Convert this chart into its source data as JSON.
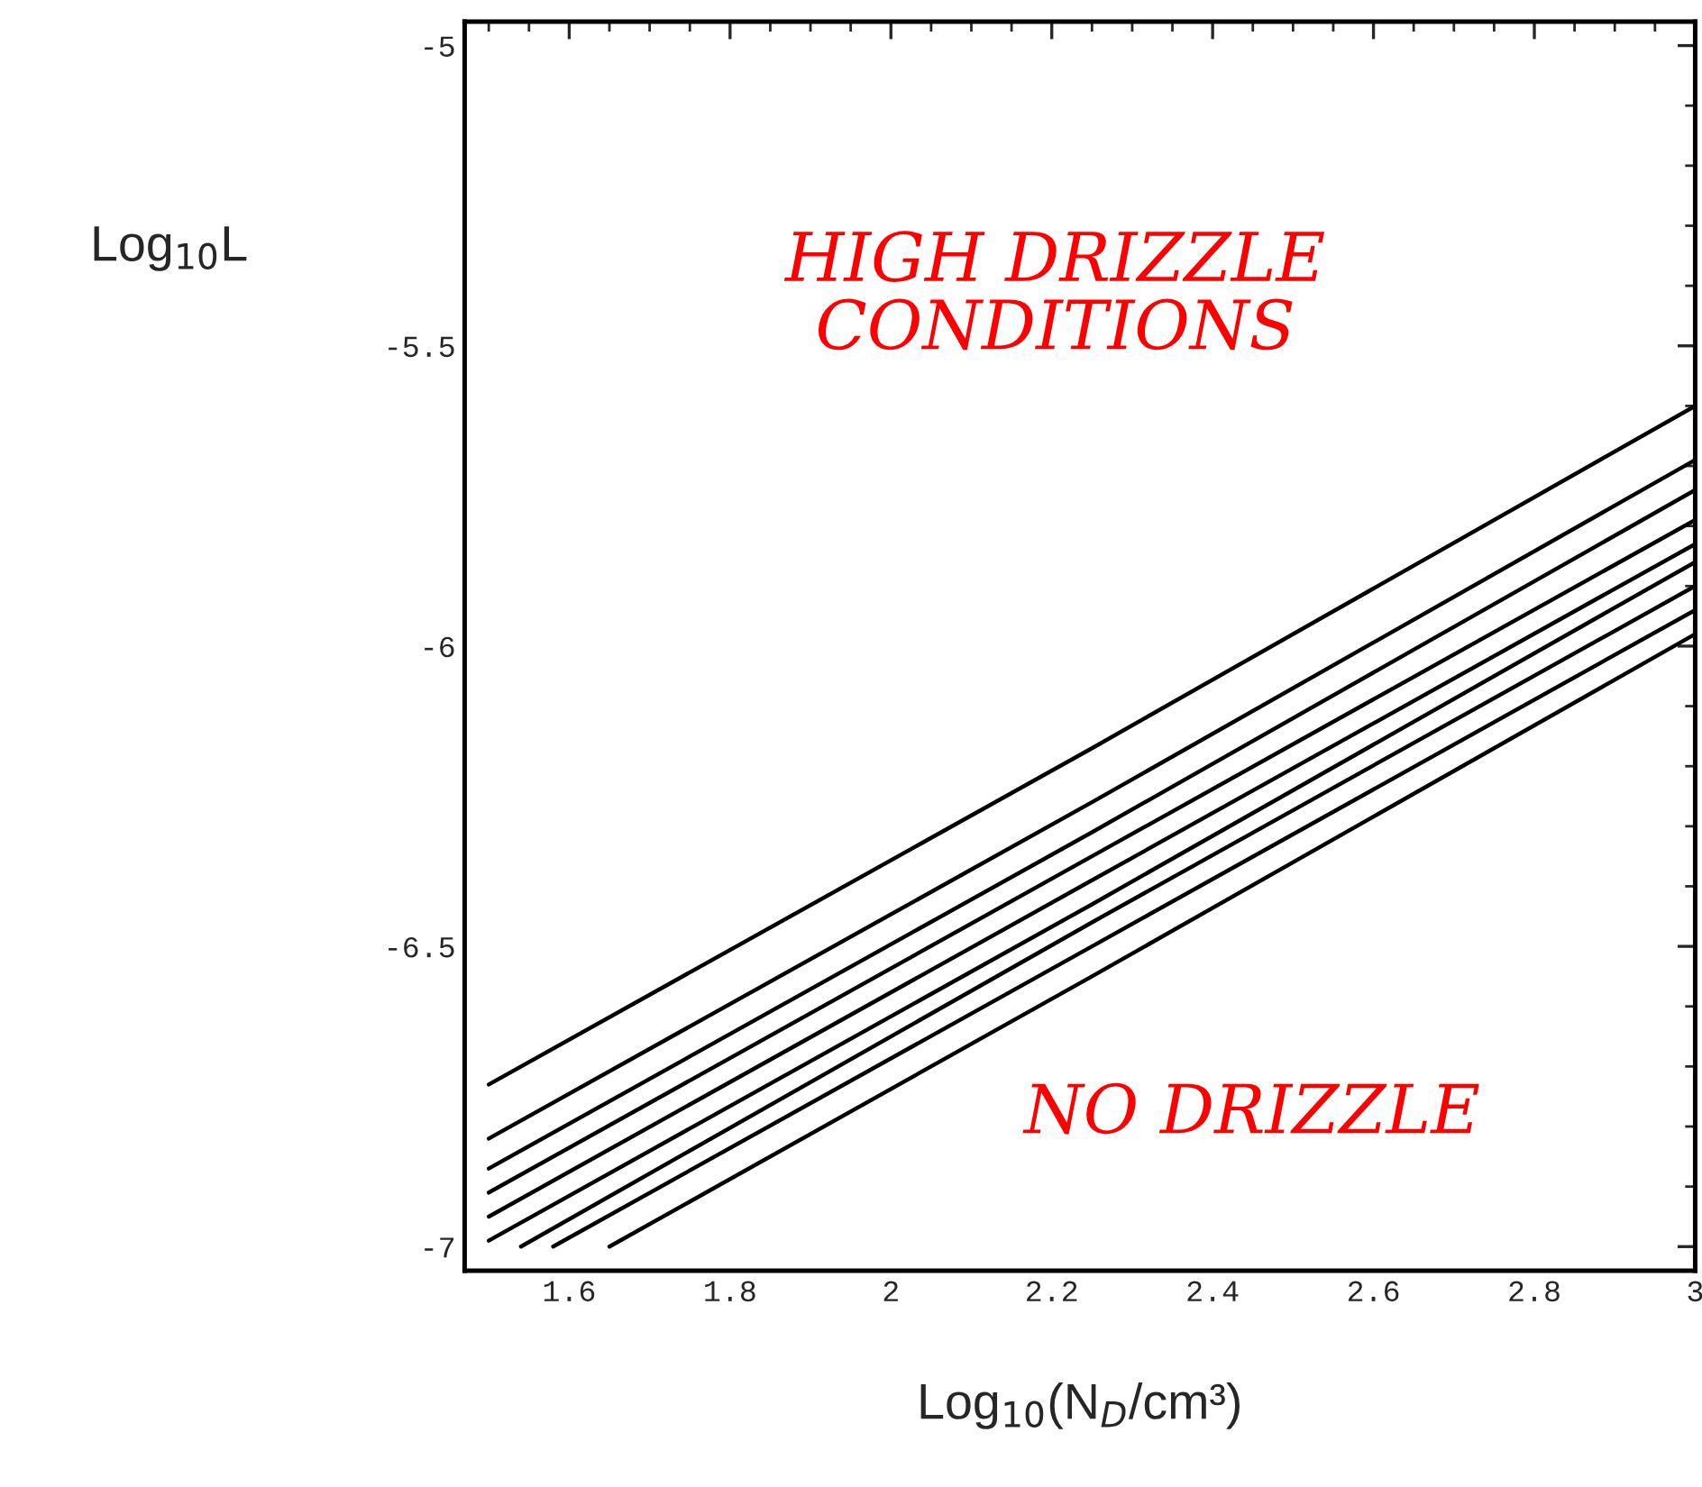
{
  "chart_data": {
    "type": "line",
    "xlabel": "Log$_{10}$(N$_{D}$/cm³)",
    "ylabel": "Log$_{10}$L",
    "annotations": [
      "HIGH DRIZZLE\nCONDITIONS",
      "NO DRIZZLE"
    ],
    "series": [
      {
        "color": "#000000",
        "x": [
          1.5,
          2.25,
          3.0
        ],
        "values": [
          -6.73,
          -6.17,
          -5.6
        ]
      },
      {
        "color": "#000000",
        "x": [
          1.5,
          2.25,
          3.0
        ],
        "values": [
          -6.82,
          -6.26,
          -5.69
        ]
      },
      {
        "color": "#000000",
        "x": [
          1.5,
          2.25,
          3.0
        ],
        "values": [
          -6.87,
          -6.31,
          -5.74
        ]
      },
      {
        "color": "#000000",
        "x": [
          1.5,
          2.25,
          3.0
        ],
        "values": [
          -6.91,
          -6.35,
          -5.79
        ]
      },
      {
        "color": "#000000",
        "x": [
          1.5,
          2.25,
          3.0
        ],
        "values": [
          -6.95,
          -6.39,
          -5.83
        ]
      },
      {
        "color": "#000000",
        "x": [
          1.5,
          2.25,
          3.0
        ],
        "values": [
          -6.99,
          -6.43,
          -5.86
        ]
      },
      {
        "color": "#000000",
        "x": [
          1.54,
          2.25,
          3.0
        ],
        "values": [
          -7.0,
          -6.46,
          -5.9
        ]
      },
      {
        "color": "#000000",
        "x": [
          1.58,
          2.25,
          3.0
        ],
        "values": [
          -7.0,
          -6.5,
          -5.94
        ]
      },
      {
        "color": "#000000",
        "x": [
          1.65,
          2.25,
          3.0
        ],
        "values": [
          -7.0,
          -6.55,
          -5.98
        ]
      }
    ],
    "xlim": [
      1.47,
      3.0
    ],
    "ylim": [
      -7.04,
      -4.96
    ],
    "xticks": [
      1.6,
      1.8,
      2,
      2.2,
      2.4,
      2.6,
      2.8,
      3
    ],
    "yticks": [
      -5,
      -5.5,
      -6,
      -6.5,
      -7
    ],
    "grid": false,
    "legend": false,
    "marker": "none",
    "line_style": "solid"
  }
}
